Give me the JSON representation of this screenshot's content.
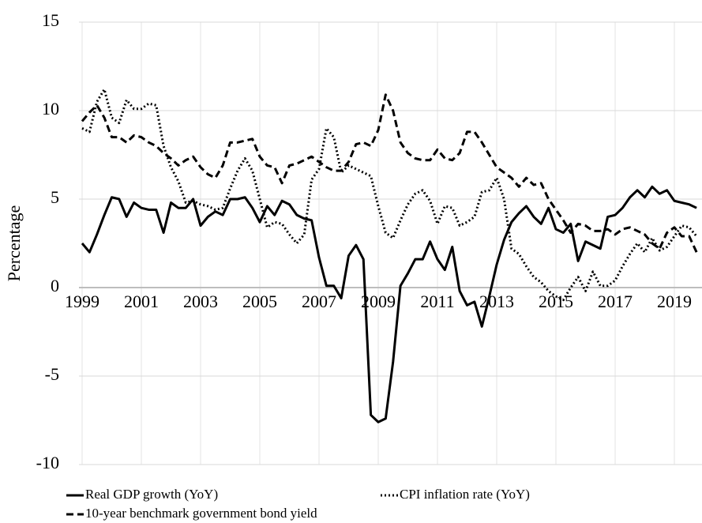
{
  "chart_data": {
    "type": "line",
    "y_label": "Percentage",
    "x": [
      1999,
      1999.25,
      1999.5,
      1999.75,
      2000,
      2000.25,
      2000.5,
      2000.75,
      2001,
      2001.25,
      2001.5,
      2001.75,
      2002,
      2002.25,
      2002.5,
      2002.75,
      2003,
      2003.25,
      2003.5,
      2003.75,
      2004,
      2004.25,
      2004.5,
      2004.75,
      2005,
      2005.25,
      2005.5,
      2005.75,
      2006,
      2006.25,
      2006.5,
      2006.75,
      2007,
      2007.25,
      2007.5,
      2007.75,
      2008,
      2008.25,
      2008.5,
      2008.75,
      2009,
      2009.25,
      2009.5,
      2009.75,
      2010,
      2010.25,
      2010.5,
      2010.75,
      2011,
      2011.25,
      2011.5,
      2011.75,
      2012,
      2012.25,
      2012.5,
      2012.75,
      2013,
      2013.25,
      2013.5,
      2013.75,
      2014,
      2014.25,
      2014.5,
      2014.75,
      2015,
      2015.25,
      2015.5,
      2015.75,
      2016,
      2016.25,
      2016.5,
      2016.75,
      2017,
      2017.25,
      2017.5,
      2017.75,
      2018,
      2018.25,
      2018.5,
      2018.75,
      2019,
      2019.25,
      2019.5,
      2019.75
    ],
    "series": [
      {
        "name": "Real GDP growth (YoY)",
        "color": "#000000",
        "line_style": "solid",
        "values": [
          2.5,
          2.0,
          3.0,
          4.1,
          5.1,
          5.0,
          4.0,
          4.8,
          4.5,
          4.4,
          4.4,
          3.1,
          4.8,
          4.5,
          4.5,
          5.0,
          3.5,
          4.0,
          4.3,
          4.1,
          5.0,
          5.0,
          5.1,
          4.5,
          3.7,
          4.6,
          4.1,
          4.9,
          4.7,
          4.1,
          3.9,
          3.8,
          1.7,
          0.1,
          0.1,
          -0.6,
          1.8,
          2.4,
          1.6,
          -7.2,
          -7.6,
          -7.4,
          -4.2,
          0.1,
          0.8,
          1.6,
          1.6,
          2.6,
          1.6,
          1.0,
          2.3,
          -0.2,
          -1.0,
          -0.8,
          -2.2,
          -0.5,
          1.3,
          2.7,
          3.7,
          4.2,
          4.6,
          4.0,
          3.6,
          4.5,
          3.3,
          3.1,
          3.6,
          1.5,
          2.6,
          2.4,
          2.2,
          4.0,
          4.1,
          4.5,
          5.1,
          5.5,
          5.1,
          5.7,
          5.3,
          5.5,
          4.9,
          4.8,
          4.7,
          4.5
        ]
      },
      {
        "name": "CPI inflation rate (YoY)",
        "color": "#000000",
        "line_style": "dotted",
        "values": [
          9.0,
          8.8,
          10.5,
          11.2,
          9.6,
          9.3,
          10.6,
          10.1,
          10.1,
          10.4,
          10.3,
          8.0,
          6.8,
          6.0,
          4.8,
          4.9,
          4.7,
          4.6,
          4.4,
          4.5,
          5.6,
          6.6,
          7.3,
          6.6,
          5.0,
          3.4,
          3.7,
          3.6,
          3.0,
          2.5,
          3.0,
          6.1,
          6.7,
          9.0,
          8.5,
          6.5,
          6.9,
          6.7,
          6.5,
          6.3,
          4.6,
          3.1,
          2.8,
          3.8,
          4.7,
          5.3,
          5.5,
          4.9,
          3.6,
          4.6,
          4.5,
          3.5,
          3.7,
          4.0,
          5.4,
          5.5,
          6.2,
          5.0,
          2.2,
          1.9,
          1.2,
          0.6,
          0.3,
          -0.2,
          -0.5,
          -0.7,
          0.0,
          0.6,
          -0.2,
          0.9,
          0.1,
          0.1,
          0.4,
          1.2,
          1.9,
          2.5,
          2.0,
          2.8,
          2.1,
          2.3,
          2.9,
          3.5,
          3.4,
          2.9
        ]
      },
      {
        "name": "10-year benchmark government bond yield",
        "color": "#000000",
        "line_style": "dashed",
        "values": [
          9.4,
          9.9,
          10.3,
          9.6,
          8.5,
          8.5,
          8.2,
          8.6,
          8.5,
          8.2,
          8.0,
          7.6,
          7.3,
          6.9,
          7.2,
          7.4,
          6.8,
          6.4,
          6.2,
          6.9,
          8.2,
          8.2,
          8.3,
          8.4,
          7.4,
          6.9,
          6.8,
          5.9,
          6.9,
          7.0,
          7.2,
          7.4,
          7.1,
          6.8,
          6.6,
          6.6,
          7.1,
          8.1,
          8.2,
          8.0,
          8.9,
          10.9,
          10.0,
          8.2,
          7.6,
          7.3,
          7.2,
          7.2,
          7.8,
          7.3,
          7.2,
          7.6,
          8.8,
          8.8,
          8.2,
          7.5,
          6.8,
          6.5,
          6.2,
          5.7,
          6.2,
          5.8,
          5.9,
          5.0,
          4.4,
          3.8,
          3.1,
          3.6,
          3.5,
          3.2,
          3.2,
          3.3,
          3.0,
          3.3,
          3.4,
          3.2,
          3.0,
          2.5,
          2.2,
          3.1,
          3.4,
          2.9,
          2.9,
          2.0
        ]
      }
    ],
    "xlim": [
      1999,
      2020
    ],
    "xticks": [
      1999,
      2001,
      2003,
      2005,
      2007,
      2009,
      2011,
      2013,
      2015,
      2017,
      2019
    ],
    "ylim": [
      -10,
      15
    ],
    "yticks": [
      -10,
      -5,
      0,
      5,
      10,
      15
    ],
    "grid": true,
    "legend": "bottom"
  }
}
